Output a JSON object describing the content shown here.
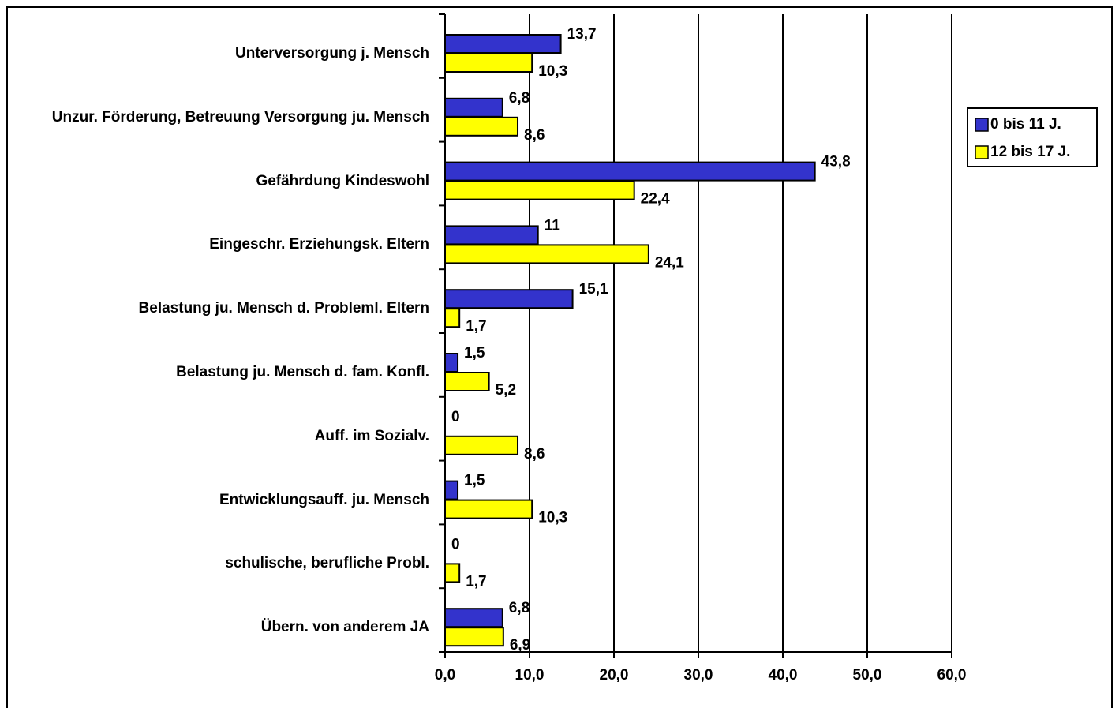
{
  "chart_data": {
    "type": "bar",
    "orientation": "horizontal",
    "categories": [
      "Unterversorgung j. Mensch",
      "Unzur. Förderung, Betreuung Versorgung ju. Mensch",
      "Gefährdung Kindeswohl",
      "Eingeschr. Erziehungsk. Eltern",
      "Belastung ju. Mensch d. Probleml. Eltern",
      "Belastung ju. Mensch d. fam. Konfl.",
      "Auff. im Sozialv.",
      "Entwicklungsauff. ju. Mensch",
      "schulische, berufliche Probl.",
      "Übern. von anderem JA"
    ],
    "series": [
      {
        "name": "0 bis 11 J.",
        "color": "#3333cc",
        "values": [
          13.7,
          6.8,
          43.8,
          11,
          15.1,
          1.5,
          0,
          1.5,
          0,
          6.8
        ],
        "value_labels": [
          "13,7",
          "6,8",
          "43,8",
          "11",
          "15,1",
          "1,5",
          "0",
          "1,5",
          "0",
          "6,8"
        ]
      },
      {
        "name": "12 bis 17 J.",
        "color": "#ffff00",
        "values": [
          10.3,
          8.6,
          22.4,
          24.1,
          1.7,
          5.2,
          8.6,
          10.3,
          1.7,
          6.9
        ],
        "value_labels": [
          "10,3",
          "8,6",
          "22,4",
          "24,1",
          "1,7",
          "5,2",
          "8,6",
          "10,3",
          "1,7",
          "6,9"
        ]
      }
    ],
    "xlim": [
      0,
      60
    ],
    "xticks": [
      {
        "value": 0,
        "label": "0,0"
      },
      {
        "value": 10,
        "label": "10,0"
      },
      {
        "value": 20,
        "label": "20,0"
      },
      {
        "value": 30,
        "label": "30,0"
      },
      {
        "value": 40,
        "label": "40,0"
      },
      {
        "value": 50,
        "label": "50,0"
      },
      {
        "value": 60,
        "label": "60,0"
      }
    ],
    "grid": true,
    "legend": "right"
  }
}
